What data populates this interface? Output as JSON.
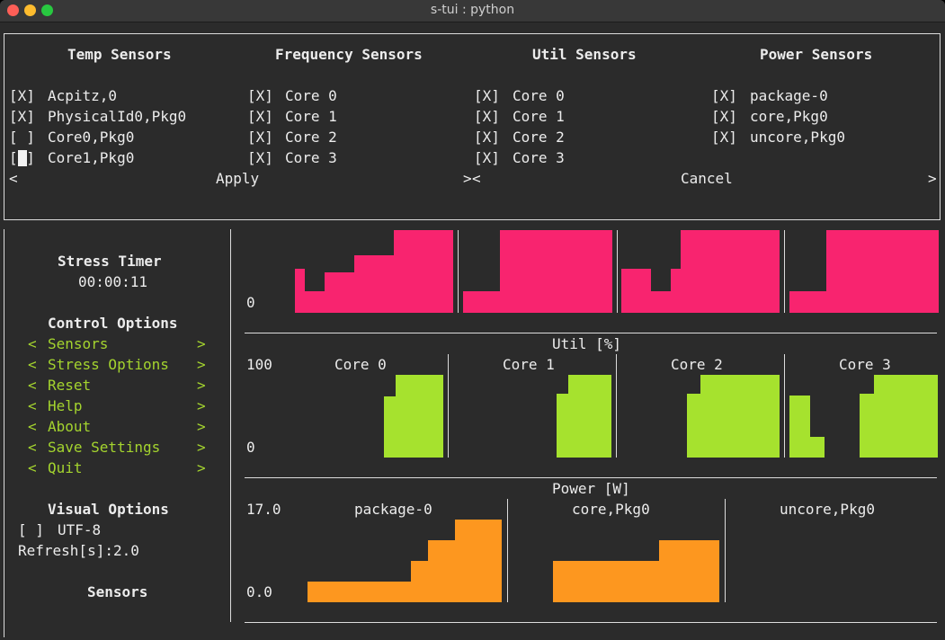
{
  "window": {
    "title": "s-tui : python"
  },
  "sensors_dialog": {
    "columns": [
      {
        "header": "Temp Sensors",
        "items": [
          {
            "check": "[X]",
            "label": "Acpitz,0"
          },
          {
            "check": "[X]",
            "label": "PhysicalId0,Pkg0"
          },
          {
            "check": "[ ]",
            "label": "Core0,Pkg0"
          },
          {
            "check": "[ ]",
            "label": "Core1,Pkg0"
          }
        ]
      },
      {
        "header": "Frequency Sensors",
        "items": [
          {
            "check": "[X]",
            "label": "Core 0"
          },
          {
            "check": "[X]",
            "label": "Core 1"
          },
          {
            "check": "[X]",
            "label": "Core 2"
          },
          {
            "check": "[X]",
            "label": "Core 3"
          }
        ]
      },
      {
        "header": "Util Sensors",
        "items": [
          {
            "check": "[X]",
            "label": "Core 0"
          },
          {
            "check": "[X]",
            "label": "Core 1"
          },
          {
            "check": "[X]",
            "label": "Core 2"
          },
          {
            "check": "[X]",
            "label": "Core 3"
          }
        ]
      },
      {
        "header": "Power Sensors",
        "items": [
          {
            "check": "[X]",
            "label": "package-0"
          },
          {
            "check": "[X]",
            "label": "core,Pkg0"
          },
          {
            "check": "[X]",
            "label": "uncore,Pkg0"
          }
        ]
      }
    ],
    "apply_button": {
      "left": "<",
      "label": "Apply",
      "right": ">"
    },
    "cancel_button": {
      "left": "<",
      "label": "Cancel",
      "right": ">"
    }
  },
  "sidebar": {
    "stress_timer_label": "Stress Timer",
    "stress_timer_value": "00:00:11",
    "control_options_label": "Control Options",
    "menu_items": [
      {
        "left": "<",
        "label": "Sensors",
        "right": ">"
      },
      {
        "left": "<",
        "label": "Stress Options",
        "right": ">"
      },
      {
        "left": "<",
        "label": "Reset",
        "right": ">"
      },
      {
        "left": "<",
        "label": "Help",
        "right": ">"
      },
      {
        "left": "<",
        "label": "About",
        "right": ">"
      },
      {
        "left": "<",
        "label": "Save Settings",
        "right": ">"
      },
      {
        "left": "<",
        "label": "Quit",
        "right": ">"
      }
    ],
    "visual_options_label": "Visual Options",
    "utf8_check": "[ ]",
    "utf8_label": "UTF-8",
    "refresh_label": "Refresh[s]:2.0",
    "sensors_label": "Sensors"
  },
  "graphs": {
    "frequency": {
      "ymin_label": "0",
      "color": "#f8246f",
      "panels": [
        {
          "profile": [
            0.53,
            0.26,
            0.26,
            0.49,
            0.49,
            0.49,
            0.7,
            0.7,
            0.7,
            0.7,
            1,
            1,
            1,
            1,
            1,
            1
          ]
        },
        {
          "profile": [
            0.26,
            0.26,
            0.26,
            0.26,
            1,
            1,
            1,
            1,
            1,
            1,
            1,
            1,
            1,
            1,
            1,
            1
          ]
        },
        {
          "profile": [
            0.53,
            0.53,
            0.53,
            0.26,
            0.26,
            0.53,
            1,
            1,
            1,
            1,
            1,
            1,
            1,
            1,
            1,
            1
          ]
        },
        {
          "profile": [
            0.26,
            0.26,
            0.26,
            0.26,
            1,
            1,
            1,
            1,
            1,
            1,
            1,
            1,
            1,
            1,
            1,
            1
          ]
        }
      ]
    },
    "util": {
      "title": "Util [%]",
      "ymax_label": "100",
      "ymin_label": "0",
      "color": "#a6e22e",
      "panels": [
        {
          "label": "Core 0",
          "profile": [
            0,
            0,
            0,
            0,
            0,
            0,
            0,
            0,
            0,
            0,
            0,
            0,
            0,
            0,
            0,
            0.74,
            0.74,
            1,
            1,
            1,
            1,
            1,
            1,
            1,
            1
          ]
        },
        {
          "label": "Core 1",
          "profile": [
            0,
            0,
            0,
            0,
            0,
            0,
            0,
            0,
            0,
            0,
            0,
            0,
            0,
            0,
            0,
            0,
            0,
            0.77,
            0.77,
            1,
            1,
            1,
            1,
            1,
            1,
            1
          ]
        },
        {
          "label": "Core 2",
          "profile": [
            0,
            0,
            0,
            0,
            0,
            0,
            0,
            0,
            0,
            0,
            0.77,
            0.77,
            1,
            1,
            1,
            1,
            1,
            1,
            1,
            1,
            1,
            1,
            1,
            1
          ]
        },
        {
          "label": "Core 3",
          "profile": [
            0.75,
            0.75,
            0.75,
            0.25,
            0.25,
            0,
            0,
            0,
            0,
            0,
            0.77,
            0.77,
            1,
            1,
            1,
            1,
            1,
            1,
            1,
            1,
            1
          ]
        }
      ]
    },
    "power": {
      "title": "Power [W]",
      "ymax_label": "17.0",
      "ymin_label": "0.0",
      "color": "#fd971f",
      "panels": [
        {
          "label": "package-0",
          "profile": [
            0,
            0,
            0,
            0,
            0,
            0,
            0,
            0,
            0,
            0,
            0.25,
            0.25,
            0.25,
            0.25,
            0.25,
            0.25,
            0.25,
            0.25,
            0.25,
            0.25,
            0.25,
            0.25,
            0.25,
            0.25,
            0.25,
            0.25,
            0.25,
            0.25,
            0.25,
            0.25,
            0.25,
            0.25,
            0.25,
            0.25,
            0.25,
            0.25,
            0.25,
            0.25,
            0.25,
            0.25,
            0.25,
            0.25,
            0.25,
            0.25,
            0.25,
            0.25,
            0.25,
            0.25,
            0.25,
            0.25,
            0.25,
            0.25,
            0.25,
            0.25,
            0.25,
            0.25,
            0.25,
            0.25,
            0.25,
            0.25,
            0.25,
            0.25,
            0.25,
            0.25,
            0.25,
            0.25,
            0.25,
            0.25,
            0.25,
            0.25,
            0.25,
            0.25,
            0.25,
            0.25,
            0.25,
            0.25,
            0.25,
            0.25,
            0.25,
            0.25,
            0.25,
            0.25,
            0.25,
            0.25,
            0.25,
            0.25,
            0.25,
            0.25,
            0.5,
            0.5,
            0.5,
            0.5,
            0.5,
            0.5,
            0.5,
            0.5,
            0.5,
            0.5,
            0.5,
            0.5,
            0.5,
            0.75,
            0.75,
            0.75,
            0.75,
            0.75,
            0.75,
            0.75,
            0.75,
            0.75,
            0.75,
            0.75,
            0.75,
            0.75,
            0.75,
            0.75,
            0.75,
            0.75,
            0.75,
            0.75,
            0.75,
            1,
            1,
            1,
            1,
            1,
            1,
            1,
            1,
            1,
            1,
            1,
            1,
            1,
            1,
            1,
            1,
            1,
            1,
            1,
            1,
            1,
            1,
            1,
            1,
            1,
            1,
            1,
            1,
            1,
            1,
            1,
            1,
            1,
            1,
            1,
            1
          ]
        },
        {
          "label": "core,Pkg0",
          "profile": [
            0,
            0,
            0,
            0,
            0,
            0,
            0,
            0,
            0,
            0,
            0,
            0,
            0,
            0,
            0,
            0,
            0,
            0,
            0,
            0,
            0,
            0,
            0,
            0,
            0,
            0,
            0,
            0,
            0,
            0,
            0,
            0,
            0,
            0,
            0,
            0,
            0,
            0,
            0,
            0,
            0,
            0,
            0,
            0,
            0,
            0.5,
            0.5,
            0.5,
            0.5,
            0.5,
            0.5,
            0.5,
            0.5,
            0.5,
            0.5,
            0.5,
            0.5,
            0.5,
            0.5,
            0.5,
            0.5,
            0.5,
            0.5,
            0.5,
            0.5,
            0.5,
            0.5,
            0.5,
            0.5,
            0.5,
            0.5,
            0.5,
            0.5,
            0.5,
            0.5,
            0.5,
            0.5,
            0.5,
            0.5,
            0.5,
            0.5,
            0.5,
            0.5,
            0.5,
            0.5,
            0.5,
            0.5,
            0.5,
            0.5,
            0.5,
            0.5,
            0.5,
            0.5,
            0.5,
            0.5,
            0.5,
            0.5,
            0.5,
            0.5,
            0.5,
            0.5,
            0.5,
            0.5,
            0.5,
            0.5,
            0.5,
            0.5,
            0.5,
            0.5,
            0.5,
            0.5,
            0.5,
            0.5,
            0.5,
            0.5,
            0.5,
            0.5,
            0.5,
            0.5,
            0.5,
            0.5,
            0.5,
            0.5,
            0.5,
            0.5,
            0.5,
            0.5,
            0.5,
            0.5,
            0.5,
            0.5,
            0.5,
            0.5,
            0.5,
            0.5,
            0.5,
            0.5,
            0.5,
            0.5,
            0.5,
            0.5,
            0.5,
            0.5,
            0.5,
            0.5,
            0.5,
            0.5,
            0.5,
            0.5,
            0.5,
            0.5,
            0.5,
            0.5,
            0.5,
            0.5,
            0.5,
            0.5,
            0.5,
            0.5,
            0.5,
            0.5,
            0.75,
            0.75,
            0.75,
            0.75,
            0.75,
            0.75,
            0.75,
            0.75,
            0.75,
            0.75,
            0.75,
            0.75,
            0.75,
            0.75,
            0.75,
            0.75,
            0.75,
            0.75,
            0.75,
            0.75,
            0.75,
            0.75,
            0.75,
            0.75,
            0.75,
            0.75,
            0.75,
            0.75,
            0.75,
            0.75,
            0.75,
            0.75,
            0.75,
            0.75,
            0.75,
            0.75,
            0.75,
            0.75,
            0.75,
            0.75,
            0.75,
            0.75,
            0.75,
            0.75,
            0.75,
            0.75,
            0.75,
            0.75,
            0.75,
            0.75,
            0.75,
            0.75,
            0.75,
            0.75,
            0.75,
            0.75,
            0.75,
            0.75,
            0.75,
            0.75,
            0.75,
            0.75,
            0.75,
            0.75,
            0.75,
            0.75
          ]
        },
        {
          "label": "uncore,Pkg0",
          "profile": [
            0
          ]
        }
      ]
    }
  }
}
